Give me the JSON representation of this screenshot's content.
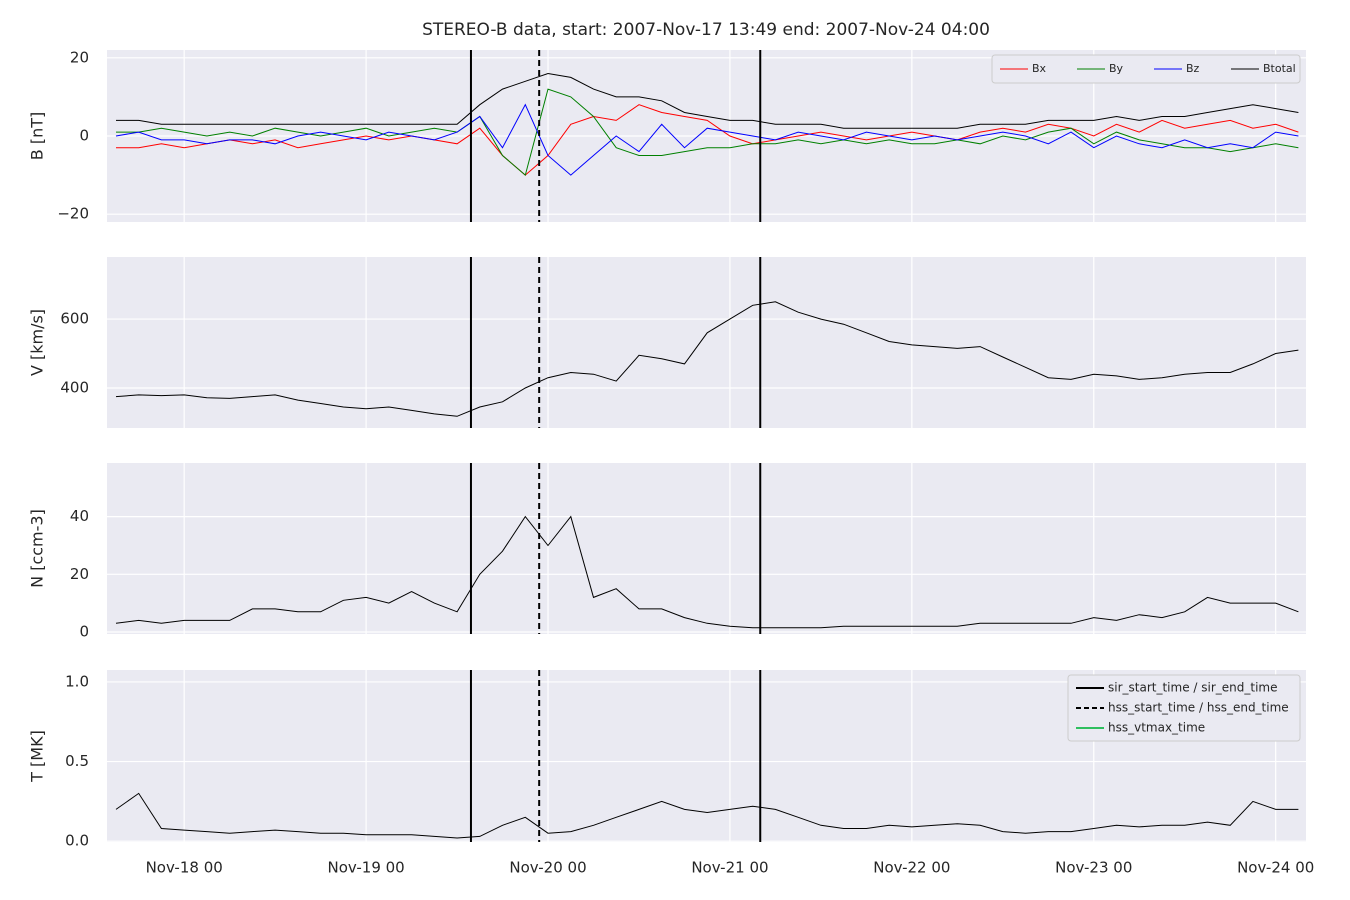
{
  "chart_data": {
    "type": "line",
    "title": "STEREO-B data, start: 2007-Nov-17 13:49  end: 2007-Nov-24 04:00",
    "xlim": [
      "2007-11-17T13:49",
      "2007-11-24T04:00"
    ],
    "xticks": [
      {
        "value": "2007-11-18T00:00",
        "label": "Nov-18 00"
      },
      {
        "value": "2007-11-19T00:00",
        "label": "Nov-19 00"
      },
      {
        "value": "2007-11-20T00:00",
        "label": "Nov-20 00"
      },
      {
        "value": "2007-11-21T00:00",
        "label": "Nov-21 00"
      },
      {
        "value": "2007-11-22T00:00",
        "label": "Nov-22 00"
      },
      {
        "value": "2007-11-23T00:00",
        "label": "Nov-23 00"
      },
      {
        "value": "2007-11-24T00:00",
        "label": "Nov-24 00"
      }
    ],
    "grid": true,
    "x": [
      "2007-11-17T15:00",
      "2007-11-17T18:00",
      "2007-11-17T21:00",
      "2007-11-18T00:00",
      "2007-11-18T03:00",
      "2007-11-18T06:00",
      "2007-11-18T09:00",
      "2007-11-18T12:00",
      "2007-11-18T15:00",
      "2007-11-18T18:00",
      "2007-11-18T21:00",
      "2007-11-19T00:00",
      "2007-11-19T03:00",
      "2007-11-19T06:00",
      "2007-11-19T09:00",
      "2007-11-19T12:00",
      "2007-11-19T15:00",
      "2007-11-19T18:00",
      "2007-11-19T21:00",
      "2007-11-20T00:00",
      "2007-11-20T03:00",
      "2007-11-20T06:00",
      "2007-11-20T09:00",
      "2007-11-20T12:00",
      "2007-11-20T15:00",
      "2007-11-20T18:00",
      "2007-11-20T21:00",
      "2007-11-21T00:00",
      "2007-11-21T03:00",
      "2007-11-21T06:00",
      "2007-11-21T09:00",
      "2007-11-21T12:00",
      "2007-11-21T15:00",
      "2007-11-21T18:00",
      "2007-11-21T21:00",
      "2007-11-22T00:00",
      "2007-11-22T03:00",
      "2007-11-22T06:00",
      "2007-11-22T09:00",
      "2007-11-22T12:00",
      "2007-11-22T15:00",
      "2007-11-22T18:00",
      "2007-11-22T21:00",
      "2007-11-23T00:00",
      "2007-11-23T03:00",
      "2007-11-23T06:00",
      "2007-11-23T09:00",
      "2007-11-23T12:00",
      "2007-11-23T15:00",
      "2007-11-23T18:00",
      "2007-11-23T21:00",
      "2007-11-24T00:00",
      "2007-11-24T03:00"
    ],
    "markers": [
      {
        "name": "sir_start_time / sir_end_time",
        "color": "#000000",
        "dashed": false,
        "x": [
          "2007-11-19T13:50",
          "2007-11-21T04:00"
        ]
      },
      {
        "name": "hss_start_time / hss_end_time",
        "color": "#000000",
        "dashed": true,
        "x": [
          "2007-11-19T22:50"
        ]
      },
      {
        "name": "hss_vtmax_time",
        "color": "#2fbf5f",
        "dashed": false,
        "x": []
      }
    ],
    "panels": [
      {
        "ylabel": "B [nT]",
        "ylim": [
          -22,
          22
        ],
        "yticks": [
          {
            "value": -20,
            "label": "−20"
          },
          0,
          20
        ],
        "legend": "upper right",
        "legend_columns": 4,
        "series": [
          {
            "name": "Bx",
            "color": "#ff0000",
            "values": [
              -3,
              -3,
              -2,
              -3,
              -2,
              -1,
              -2,
              -1,
              -3,
              -2,
              -1,
              0,
              -1,
              0,
              -1,
              -2,
              2,
              -5,
              -10,
              -5,
              3,
              5,
              4,
              8,
              6,
              5,
              4,
              0,
              -2,
              -1,
              0,
              1,
              0,
              -1,
              0,
              1,
              0,
              -1,
              1,
              2,
              1,
              3,
              2,
              0,
              3,
              1,
              4,
              2,
              3,
              4,
              2,
              3,
              1
            ]
          },
          {
            "name": "By",
            "color": "#008000",
            "values": [
              1,
              1,
              2,
              1,
              0,
              1,
              0,
              2,
              1,
              0,
              1,
              2,
              0,
              1,
              2,
              1,
              5,
              -5,
              -10,
              12,
              10,
              5,
              -3,
              -5,
              -5,
              -4,
              -3,
              -3,
              -2,
              -2,
              -1,
              -2,
              -1,
              -2,
              -1,
              -2,
              -2,
              -1,
              -2,
              0,
              -1,
              1,
              2,
              -2,
              1,
              -1,
              -2,
              -3,
              -3,
              -4,
              -3,
              -2,
              -3
            ]
          },
          {
            "name": "Bz",
            "color": "#0000ff",
            "values": [
              0,
              1,
              -1,
              -1,
              -2,
              -1,
              -1,
              -2,
              0,
              1,
              0,
              -1,
              1,
              0,
              -1,
              1,
              5,
              -3,
              8,
              -5,
              -10,
              -5,
              0,
              -4,
              3,
              -3,
              2,
              1,
              0,
              -1,
              1,
              0,
              -1,
              1,
              0,
              -1,
              0,
              -1,
              0,
              1,
              0,
              -2,
              1,
              -3,
              0,
              -2,
              -3,
              -1,
              -3,
              -2,
              -3,
              1,
              0
            ]
          },
          {
            "name": "Btotal",
            "color": "#000000",
            "values": [
              4,
              4,
              3,
              3,
              3,
              3,
              3,
              3,
              3,
              3,
              3,
              3,
              3,
              3,
              3,
              3,
              8,
              12,
              14,
              16,
              15,
              12,
              10,
              10,
              9,
              6,
              5,
              4,
              4,
              3,
              3,
              3,
              2,
              2,
              2,
              2,
              2,
              2,
              3,
              3,
              3,
              4,
              4,
              4,
              5,
              4,
              5,
              5,
              6,
              7,
              8,
              7,
              6
            ]
          }
        ]
      },
      {
        "ylabel": "V [km/s]",
        "ylim": [
          284,
          780
        ],
        "yticks": [
          400,
          600
        ],
        "series": [
          {
            "color": "#000000",
            "values": [
              375,
              380,
              378,
              380,
              372,
              370,
              375,
              380,
              365,
              355,
              345,
              340,
              345,
              335,
              325,
              318,
              345,
              360,
              400,
              430,
              445,
              440,
              420,
              495,
              485,
              470,
              560,
              600,
              640,
              650,
              620,
              600,
              585,
              560,
              535,
              525,
              520,
              515,
              520,
              490,
              460,
              430,
              425,
              440,
              435,
              425,
              430,
              440,
              445,
              445,
              470,
              500,
              510
            ]
          }
        ]
      },
      {
        "ylabel": "N [ccm-3]",
        "ylim": [
          -0.7,
          58.6
        ],
        "yticks": [
          0,
          20,
          40
        ],
        "series": [
          {
            "color": "#000000",
            "values": [
              3,
              4,
              3,
              4,
              4,
              4,
              8,
              8,
              7,
              7,
              11,
              12,
              10,
              14,
              10,
              7,
              20,
              28,
              40,
              30,
              40,
              12,
              15,
              8,
              8,
              5,
              3,
              2,
              1.5,
              1.5,
              1.5,
              1.5,
              2,
              2,
              2,
              2,
              2,
              2,
              3,
              3,
              3,
              3,
              3,
              5,
              4,
              6,
              5,
              7,
              12,
              10,
              10,
              10,
              7
            ]
          }
        ]
      },
      {
        "ylabel": "T [MK]",
        "ylim": [
          -0.005,
          1.075
        ],
        "yticks": [
          {
            "value": 0,
            "label": "0.0"
          },
          0.5,
          {
            "value": 1,
            "label": "1.0"
          }
        ],
        "legend": "upper right",
        "legend_columns": 1,
        "legend_of": "markers",
        "series": [
          {
            "color": "#000000",
            "values": [
              0.2,
              0.3,
              0.08,
              0.07,
              0.06,
              0.05,
              0.06,
              0.07,
              0.06,
              0.05,
              0.05,
              0.04,
              0.04,
              0.04,
              0.03,
              0.02,
              0.03,
              0.1,
              0.15,
              0.05,
              0.06,
              0.1,
              0.15,
              0.2,
              0.25,
              0.2,
              0.18,
              0.2,
              0.22,
              0.2,
              0.15,
              0.1,
              0.08,
              0.08,
              0.1,
              0.09,
              0.1,
              0.11,
              0.1,
              0.06,
              0.05,
              0.06,
              0.06,
              0.08,
              0.1,
              0.09,
              0.1,
              0.1,
              0.12,
              0.1,
              0.25,
              0.2,
              0.2
            ]
          }
        ]
      }
    ]
  }
}
